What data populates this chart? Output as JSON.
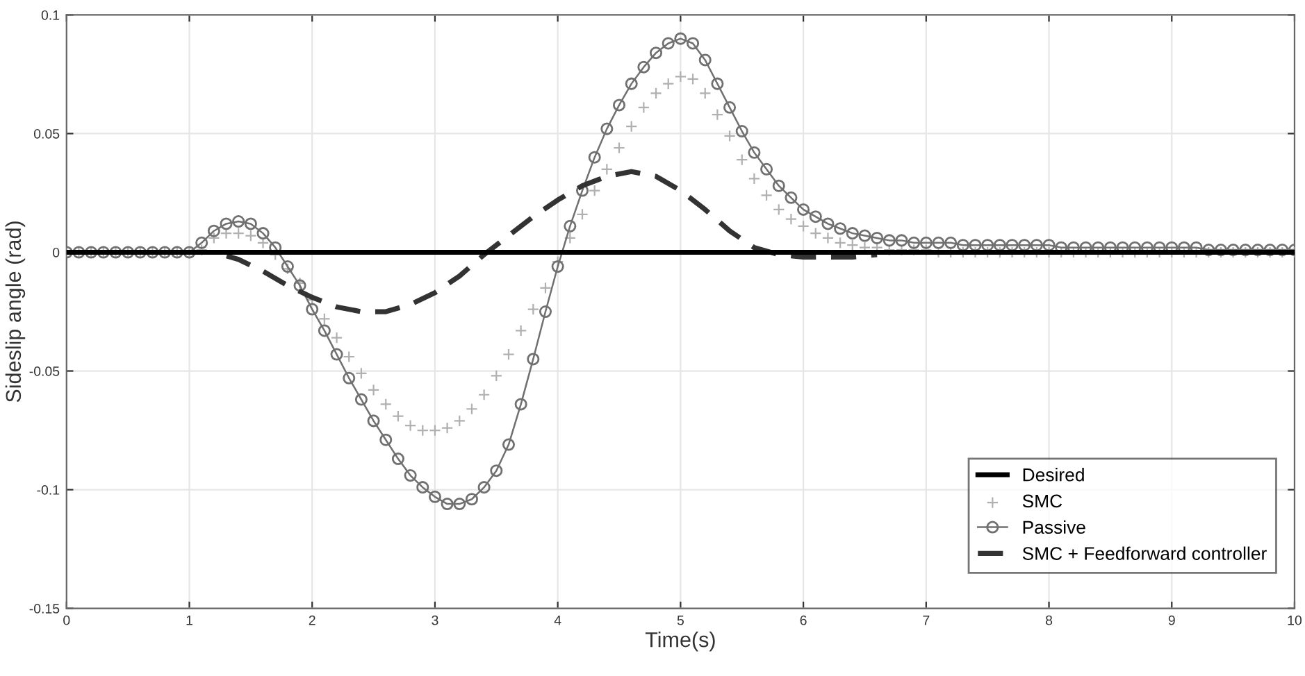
{
  "chart_data": {
    "type": "line",
    "xlabel": "Time(s)",
    "ylabel": "Sideslip angle (rad)",
    "x": [
      0,
      0.1,
      0.2,
      0.3,
      0.4,
      0.5,
      0.6,
      0.7,
      0.8,
      0.9,
      1.0,
      1.1,
      1.2,
      1.3,
      1.4,
      1.5,
      1.6,
      1.7,
      1.8,
      1.9,
      2.0,
      2.1,
      2.2,
      2.3,
      2.4,
      2.5,
      2.6,
      2.7,
      2.8,
      2.9,
      3.0,
      3.1,
      3.2,
      3.3,
      3.4,
      3.5,
      3.6,
      3.7,
      3.8,
      3.9,
      4.0,
      4.1,
      4.2,
      4.3,
      4.4,
      4.5,
      4.6,
      4.7,
      4.8,
      4.9,
      5.0,
      5.1,
      5.2,
      5.3,
      5.4,
      5.5,
      5.6,
      5.7,
      5.8,
      5.9,
      6.0,
      6.1,
      6.2,
      6.3,
      6.4,
      6.5,
      6.6,
      6.7,
      6.8,
      6.9,
      7.0,
      7.1,
      7.2,
      7.3,
      7.4,
      7.5,
      7.6,
      7.7,
      7.8,
      7.9,
      8.0,
      8.1,
      8.2,
      8.3,
      8.4,
      8.5,
      8.6,
      8.7,
      8.8,
      8.9,
      9.0,
      9.1,
      9.2,
      9.3,
      9.4,
      9.5,
      9.6,
      9.7,
      9.8,
      9.9,
      10.0
    ],
    "series": [
      {
        "name": "Desired",
        "color": "#000000",
        "line_style": "solid",
        "marker": "none",
        "x": [
          0,
          10
        ],
        "values": [
          0,
          0
        ]
      },
      {
        "name": "SMC",
        "type": "scatter",
        "color": "#b0b0b0",
        "marker": "cross",
        "values": [
          0,
          0,
          0,
          0,
          0,
          0,
          0,
          0,
          0,
          0,
          0,
          0.001,
          0.006,
          0.008,
          0.008,
          0.007,
          0.004,
          -0.001,
          -0.007,
          -0.013,
          -0.02,
          -0.028,
          -0.036,
          -0.044,
          -0.051,
          -0.058,
          -0.064,
          -0.069,
          -0.073,
          -0.075,
          -0.075,
          -0.074,
          -0.071,
          -0.066,
          -0.06,
          -0.052,
          -0.043,
          -0.033,
          -0.024,
          -0.015,
          -0.004,
          0.006,
          0.016,
          0.026,
          0.035,
          0.044,
          0.053,
          0.061,
          0.067,
          0.071,
          0.074,
          0.073,
          0.067,
          0.058,
          0.049,
          0.039,
          0.031,
          0.024,
          0.018,
          0.014,
          0.011,
          0.008,
          0.006,
          0.004,
          0.003,
          0.002,
          0.002,
          0.001,
          0.001,
          0.001,
          0.001,
          0,
          0,
          0,
          0,
          0,
          0,
          0,
          0,
          0,
          0,
          0,
          0,
          0,
          0,
          0,
          0,
          0,
          0,
          0,
          0,
          0,
          0,
          0,
          0,
          0,
          0,
          0,
          0,
          0,
          0
        ]
      },
      {
        "name": "Passive",
        "color": "#707070",
        "line_style": "solid",
        "marker": "circle",
        "values": [
          0,
          0,
          0,
          0,
          0,
          0,
          0,
          0,
          0,
          0,
          0,
          0.004,
          0.009,
          0.012,
          0.013,
          0.012,
          0.008,
          0.002,
          -0.006,
          -0.014,
          -0.024,
          -0.033,
          -0.043,
          -0.053,
          -0.062,
          -0.071,
          -0.079,
          -0.087,
          -0.094,
          -0.099,
          -0.103,
          -0.106,
          -0.106,
          -0.104,
          -0.099,
          -0.092,
          -0.081,
          -0.064,
          -0.045,
          -0.025,
          -0.006,
          0.011,
          0.026,
          0.04,
          0.052,
          0.062,
          0.071,
          0.078,
          0.084,
          0.088,
          0.09,
          0.088,
          0.081,
          0.071,
          0.061,
          0.051,
          0.042,
          0.035,
          0.028,
          0.023,
          0.018,
          0.015,
          0.012,
          0.01,
          0.008,
          0.007,
          0.006,
          0.005,
          0.005,
          0.004,
          0.004,
          0.004,
          0.004,
          0.003,
          0.003,
          0.003,
          0.003,
          0.003,
          0.003,
          0.003,
          0.003,
          0.002,
          0.002,
          0.002,
          0.002,
          0.002,
          0.002,
          0.002,
          0.002,
          0.002,
          0.002,
          0.002,
          0.002,
          0.001,
          0.001,
          0.001,
          0.001,
          0.001,
          0.001,
          0.001,
          0.001
        ]
      },
      {
        "name": "SMC + Feedforward controller",
        "color": "#333333",
        "line_style": "dashed",
        "marker": "none",
        "x": [
          0,
          1.0,
          1.2,
          1.4,
          1.6,
          1.8,
          2.0,
          2.2,
          2.4,
          2.6,
          2.8,
          3.0,
          3.2,
          3.4,
          3.6,
          3.8,
          4.0,
          4.2,
          4.4,
          4.6,
          4.8,
          5.0,
          5.2,
          5.4,
          5.6,
          5.8,
          6.0,
          6.2,
          6.4,
          6.6
        ],
        "values": [
          0,
          0,
          0,
          -0.003,
          -0.008,
          -0.014,
          -0.019,
          -0.023,
          -0.025,
          -0.025,
          -0.022,
          -0.017,
          -0.01,
          -0.001,
          0.007,
          0.015,
          0.022,
          0.028,
          0.032,
          0.034,
          0.032,
          0.026,
          0.018,
          0.009,
          0.002,
          -0.001,
          -0.002,
          -0.002,
          -0.002,
          -0.001
        ]
      }
    ],
    "xlim": [
      0,
      10
    ],
    "xticks": [
      0,
      1,
      2,
      3,
      4,
      5,
      6,
      7,
      8,
      9,
      10
    ],
    "ylim": [
      -0.15,
      0.1
    ],
    "yticks": [
      -0.15,
      -0.1,
      -0.05,
      0,
      0.05,
      0.1
    ],
    "grid": true,
    "legend": "bottom right"
  }
}
